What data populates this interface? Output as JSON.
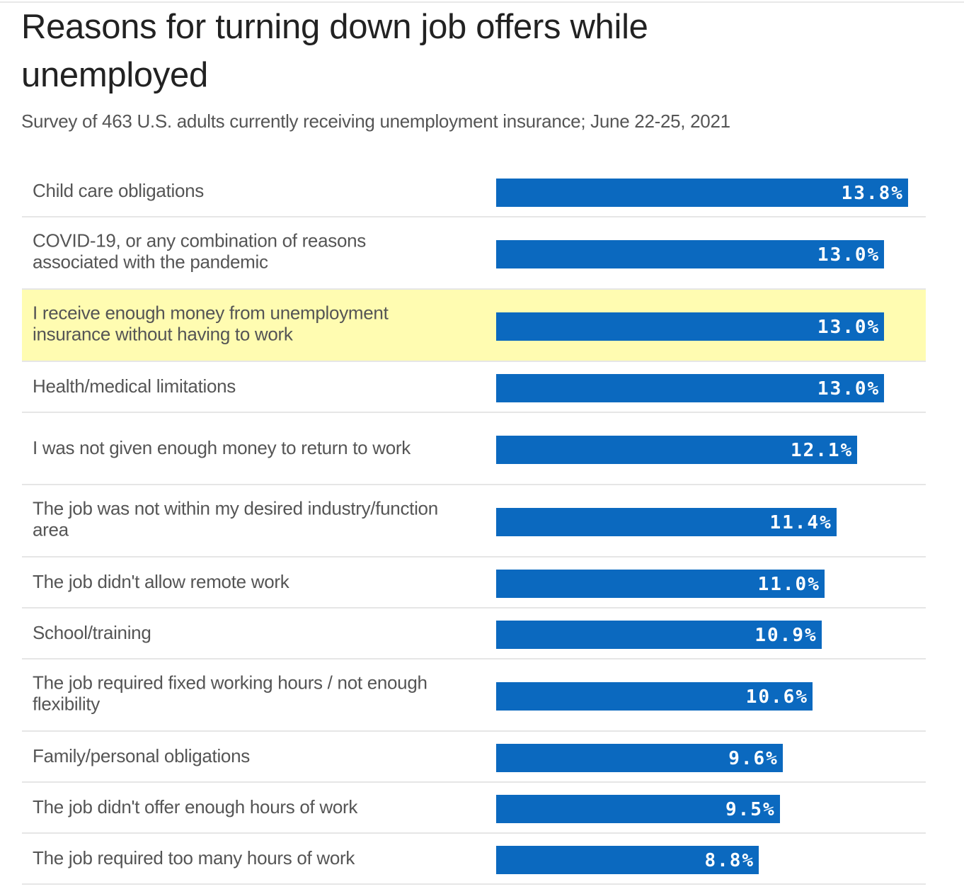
{
  "chart_data": {
    "type": "bar",
    "orientation": "horizontal",
    "title": "Reasons for turning down job offers while unemployed",
    "subtitle": "Survey of 463 U.S. adults currently receiving unemployment insurance; June 22-25, 2021",
    "categories": [
      "Child care obligations",
      "COVID-19, or any combination of reasons associated with the pandemic",
      "I receive enough money from unemployment insurance without having to work",
      "Health/medical limitations",
      "I was not given enough money to return to work",
      "The job was not within my desired industry/function area",
      "The job didn't allow remote work",
      "School/training",
      "The job required fixed working hours / not enough flexibility",
      "Family/personal obligations",
      "The job didn't offer enough hours of work",
      "The job required too many hours of work"
    ],
    "values": [
      13.8,
      13.0,
      13.0,
      13.0,
      12.1,
      11.4,
      11.0,
      10.9,
      10.6,
      9.6,
      9.5,
      8.8
    ],
    "value_labels": [
      "13.8%",
      "13.0%",
      "13.0%",
      "13.0%",
      "12.1%",
      "11.4%",
      "11.0%",
      "10.9%",
      "10.6%",
      "9.6%",
      "9.5%",
      "8.8%"
    ],
    "highlighted_index": 2,
    "bar_color": "#0b69bf",
    "highlight_color": "#fffcb1",
    "xlabel": "",
    "ylabel": "",
    "xlim": [
      0,
      14
    ]
  }
}
